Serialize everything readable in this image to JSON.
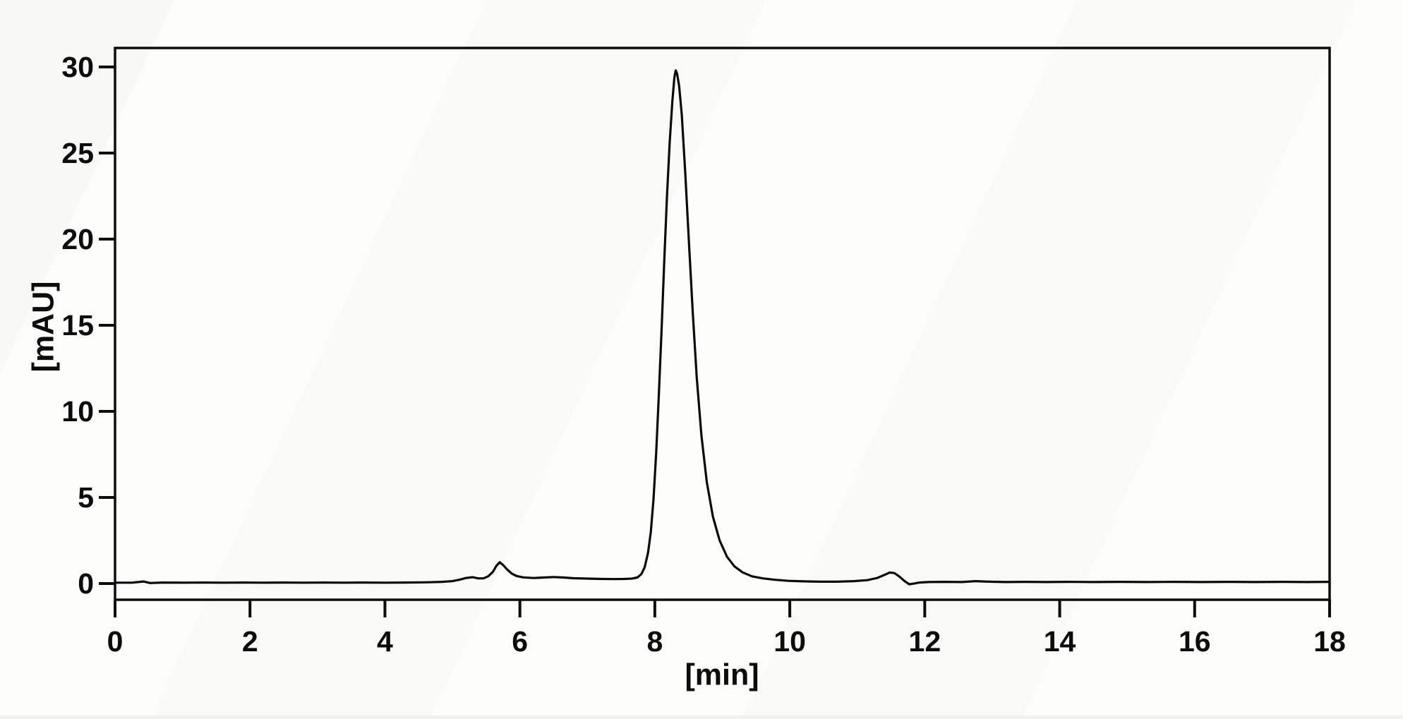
{
  "chart_data": {
    "type": "line",
    "title": "",
    "xlabel": "[min]",
    "ylabel": "[mAU]",
    "x_ticks": [
      0,
      2,
      4,
      6,
      8,
      10,
      12,
      14,
      16,
      18
    ],
    "y_ticks": [
      0,
      5,
      10,
      15,
      20,
      25,
      30
    ],
    "xlim": [
      0,
      18
    ],
    "ylim": [
      -0.94,
      31.1
    ],
    "grid": false,
    "legend": "none",
    "line_color": "#0a0a0a",
    "background_color": "#fcfcfb",
    "peaks": [
      {
        "retention_time_min": 5.7,
        "height_mAU": 1.24
      },
      {
        "retention_time_min": 8.31,
        "height_mAU": 29.8
      },
      {
        "retention_time_min": 11.5,
        "height_mAU": 0.64
      }
    ],
    "series": [
      {
        "name": "detector-signal",
        "points": [
          [
            0,
            0.05
          ],
          [
            0.25,
            0.05
          ],
          [
            0.42,
            0.12
          ],
          [
            0.52,
            0.03
          ],
          [
            0.7,
            0.06
          ],
          [
            1.0,
            0.05
          ],
          [
            1.3,
            0.06
          ],
          [
            1.6,
            0.05
          ],
          [
            1.9,
            0.06
          ],
          [
            2.2,
            0.05
          ],
          [
            2.5,
            0.06
          ],
          [
            2.8,
            0.05
          ],
          [
            3.1,
            0.06
          ],
          [
            3.4,
            0.05
          ],
          [
            3.7,
            0.06
          ],
          [
            4.0,
            0.05
          ],
          [
            4.3,
            0.06
          ],
          [
            4.6,
            0.07
          ],
          [
            4.85,
            0.1
          ],
          [
            5.0,
            0.14
          ],
          [
            5.1,
            0.22
          ],
          [
            5.2,
            0.32
          ],
          [
            5.3,
            0.37
          ],
          [
            5.38,
            0.3
          ],
          [
            5.46,
            0.3
          ],
          [
            5.53,
            0.42
          ],
          [
            5.6,
            0.68
          ],
          [
            5.65,
            1.02
          ],
          [
            5.7,
            1.24
          ],
          [
            5.75,
            1.08
          ],
          [
            5.81,
            0.82
          ],
          [
            5.88,
            0.58
          ],
          [
            5.95,
            0.44
          ],
          [
            6.05,
            0.36
          ],
          [
            6.2,
            0.32
          ],
          [
            6.35,
            0.35
          ],
          [
            6.5,
            0.38
          ],
          [
            6.65,
            0.35
          ],
          [
            6.8,
            0.31
          ],
          [
            7.0,
            0.29
          ],
          [
            7.2,
            0.27
          ],
          [
            7.4,
            0.26
          ],
          [
            7.55,
            0.27
          ],
          [
            7.66,
            0.29
          ],
          [
            7.74,
            0.35
          ],
          [
            7.8,
            0.55
          ],
          [
            7.85,
            0.95
          ],
          [
            7.9,
            1.8
          ],
          [
            7.94,
            3.0
          ],
          [
            7.98,
            4.9
          ],
          [
            8.02,
            7.6
          ],
          [
            8.06,
            11.0
          ],
          [
            8.1,
            14.8
          ],
          [
            8.14,
            18.8
          ],
          [
            8.18,
            22.5
          ],
          [
            8.22,
            25.6
          ],
          [
            8.26,
            28.0
          ],
          [
            8.29,
            29.4
          ],
          [
            8.31,
            29.8
          ],
          [
            8.33,
            29.6
          ],
          [
            8.36,
            28.9
          ],
          [
            8.4,
            27.2
          ],
          [
            8.45,
            23.9
          ],
          [
            8.5,
            20.2
          ],
          [
            8.56,
            15.9
          ],
          [
            8.62,
            12.0
          ],
          [
            8.69,
            8.6
          ],
          [
            8.77,
            5.9
          ],
          [
            8.86,
            3.9
          ],
          [
            8.96,
            2.5
          ],
          [
            9.07,
            1.55
          ],
          [
            9.18,
            1.0
          ],
          [
            9.3,
            0.65
          ],
          [
            9.44,
            0.42
          ],
          [
            9.6,
            0.3
          ],
          [
            9.78,
            0.22
          ],
          [
            9.98,
            0.16
          ],
          [
            10.2,
            0.13
          ],
          [
            10.45,
            0.11
          ],
          [
            10.7,
            0.11
          ],
          [
            10.95,
            0.14
          ],
          [
            11.15,
            0.2
          ],
          [
            11.3,
            0.33
          ],
          [
            11.4,
            0.5
          ],
          [
            11.48,
            0.64
          ],
          [
            11.55,
            0.61
          ],
          [
            11.62,
            0.42
          ],
          [
            11.7,
            0.15
          ],
          [
            11.77,
            -0.04
          ],
          [
            11.84,
            0.0
          ],
          [
            11.92,
            0.06
          ],
          [
            12.05,
            0.09
          ],
          [
            12.3,
            0.1
          ],
          [
            12.55,
            0.09
          ],
          [
            12.75,
            0.14
          ],
          [
            12.95,
            0.11
          ],
          [
            13.2,
            0.09
          ],
          [
            13.5,
            0.1
          ],
          [
            13.8,
            0.09
          ],
          [
            14.1,
            0.1
          ],
          [
            14.5,
            0.09
          ],
          [
            14.9,
            0.1
          ],
          [
            15.3,
            0.09
          ],
          [
            15.7,
            0.1
          ],
          [
            16.1,
            0.09
          ],
          [
            16.5,
            0.1
          ],
          [
            16.9,
            0.09
          ],
          [
            17.3,
            0.1
          ],
          [
            17.65,
            0.09
          ],
          [
            18,
            0.1
          ]
        ]
      }
    ]
  }
}
